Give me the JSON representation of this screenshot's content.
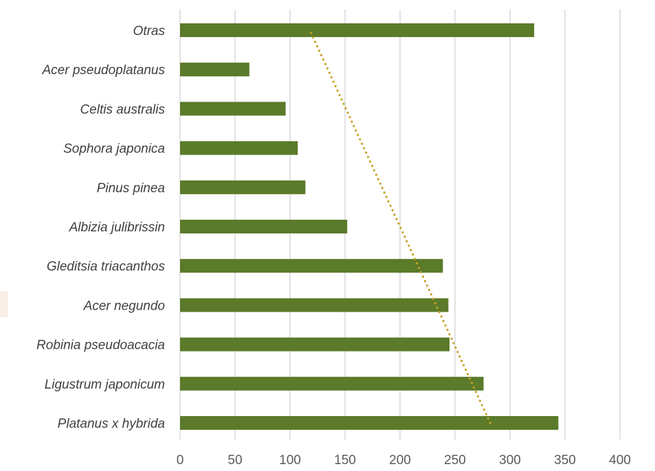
{
  "chart_data": {
    "type": "bar",
    "orientation": "horizontal",
    "title": "",
    "xlabel": "",
    "ylabel": "",
    "categories": [
      "Platanus x hybrida",
      "Ligustrum japonicum",
      "Robinia pseudoacacia",
      "Acer negundo",
      "Gleditsia triacanthos",
      "Albizia julibrissin",
      "Pinus pinea",
      "Sophora japonica",
      "Celtis australis",
      "Acer pseudoplatanus",
      "Otras"
    ],
    "values": [
      344,
      276,
      245,
      244,
      239,
      152,
      114,
      107,
      96,
      63,
      322
    ],
    "xlim": [
      0,
      400
    ],
    "xticks": [
      0,
      50,
      100,
      150,
      200,
      250,
      300,
      350,
      400
    ],
    "grid": true,
    "legend": "none",
    "bar_color": "#5b7a2a",
    "trendline": {
      "type": "linear",
      "style": "dotted",
      "color": "#c9a227",
      "start_value": 282,
      "end_value": 118
    }
  }
}
